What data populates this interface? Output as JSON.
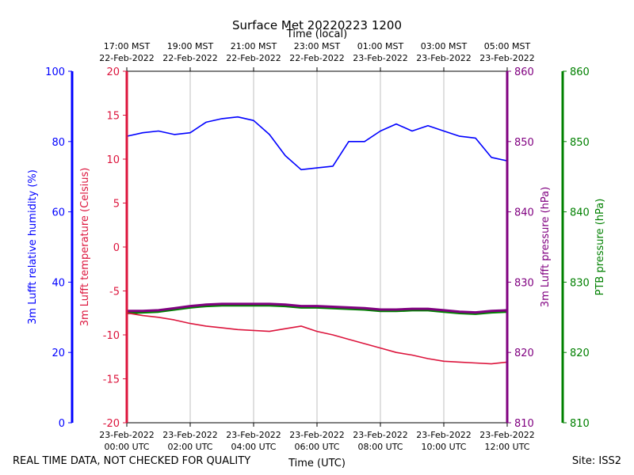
{
  "chart_data": {
    "type": "line",
    "title": "Surface Met 20220223 1200",
    "top_axis_label": "Time (local)",
    "bottom_axis_label": "Time (UTC)",
    "x_hours_range": [
      0,
      12
    ],
    "grid": "vertical",
    "bottom_ticks": [
      {
        "hour": 0,
        "date": "23-Feb-2022",
        "time": "00:00 UTC"
      },
      {
        "hour": 2,
        "date": "23-Feb-2022",
        "time": "02:00 UTC"
      },
      {
        "hour": 4,
        "date": "23-Feb-2022",
        "time": "04:00 UTC"
      },
      {
        "hour": 6,
        "date": "23-Feb-2022",
        "time": "06:00 UTC"
      },
      {
        "hour": 8,
        "date": "23-Feb-2022",
        "time": "08:00 UTC"
      },
      {
        "hour": 10,
        "date": "23-Feb-2022",
        "time": "10:00 UTC"
      },
      {
        "hour": 12,
        "date": "23-Feb-2022",
        "time": "12:00 UTC"
      }
    ],
    "top_ticks": [
      {
        "hour": 0,
        "time": "17:00 MST",
        "date": "22-Feb-2022"
      },
      {
        "hour": 2,
        "time": "19:00 MST",
        "date": "22-Feb-2022"
      },
      {
        "hour": 4,
        "time": "21:00 MST",
        "date": "22-Feb-2022"
      },
      {
        "hour": 6,
        "time": "23:00 MST",
        "date": "22-Feb-2022"
      },
      {
        "hour": 8,
        "time": "01:00 MST",
        "date": "23-Feb-2022"
      },
      {
        "hour": 10,
        "time": "03:00 MST",
        "date": "23-Feb-2022"
      },
      {
        "hour": 12,
        "time": "05:00 MST",
        "date": "23-Feb-2022"
      }
    ],
    "axes": {
      "rh": {
        "label": "3m Lufft relative humidity (%)",
        "color": "#0000ff",
        "ylim": [
          0,
          100
        ],
        "ticks": [
          0,
          20,
          40,
          60,
          80,
          100
        ]
      },
      "temp": {
        "label": "3m Lufft temperature (Celsius)",
        "color": "#dc143c",
        "ylim": [
          -20,
          20
        ],
        "ticks": [
          -20,
          -15,
          -10,
          -5,
          0,
          5,
          10,
          15,
          20
        ]
      },
      "lufft_p": {
        "label": "3m Lufft pressure (hPa)",
        "color": "#800080",
        "ylim": [
          810,
          860
        ],
        "ticks": [
          810,
          820,
          830,
          840,
          850,
          860
        ]
      },
      "ptb_p": {
        "label": "PTB pressure (hPa)",
        "color": "#008000",
        "ylim": [
          810,
          860
        ],
        "ticks": [
          810,
          820,
          830,
          840,
          850,
          860
        ]
      }
    },
    "series": [
      {
        "name": "3m Lufft relative humidity",
        "axis": "rh",
        "color": "#0000ff",
        "x": [
          0,
          0.5,
          1.0,
          1.5,
          2.0,
          2.5,
          3.0,
          3.5,
          4.0,
          4.5,
          5.0,
          5.5,
          6.0,
          6.5,
          7.0,
          7.5,
          8.0,
          8.5,
          9.0,
          9.5,
          10.0,
          10.5,
          11.0,
          11.5,
          12.0
        ],
        "values": [
          81.5,
          82.5,
          83,
          82,
          82.5,
          85.5,
          86.5,
          87,
          86,
          82,
          76,
          72,
          72.5,
          73,
          80,
          80,
          83,
          85,
          83,
          84.5,
          83,
          81.5,
          81,
          75.5,
          74.5
        ]
      },
      {
        "name": "3m Lufft temperature",
        "axis": "temp",
        "color": "#dc143c",
        "x": [
          0,
          0.5,
          1.0,
          1.5,
          2.0,
          2.5,
          3.0,
          3.5,
          4.0,
          4.5,
          5.0,
          5.5,
          6.0,
          6.5,
          7.0,
          7.5,
          8.0,
          8.5,
          9.0,
          9.5,
          10.0,
          10.5,
          11.0,
          11.5,
          12.0
        ],
        "values": [
          -7.5,
          -7.8,
          -8.0,
          -8.3,
          -8.7,
          -9.0,
          -9.2,
          -9.4,
          -9.5,
          -9.6,
          -9.3,
          -9.0,
          -9.6,
          -10.0,
          -10.5,
          -11.0,
          -11.5,
          -12.0,
          -12.3,
          -12.7,
          -13.0,
          -13.1,
          -13.2,
          -13.3,
          -13.1
        ]
      },
      {
        "name": "3m Lufft pressure",
        "axis": "lufft_p",
        "color": "#800080",
        "x": [
          0,
          0.5,
          1.0,
          1.5,
          2.0,
          2.5,
          3.0,
          3.5,
          4.0,
          4.5,
          5.0,
          5.5,
          6.0,
          6.5,
          7.0,
          7.5,
          8.0,
          8.5,
          9.0,
          9.5,
          10.0,
          10.5,
          11.0,
          11.5,
          12.0
        ],
        "values": [
          825.9,
          825.9,
          826.0,
          826.3,
          826.6,
          826.8,
          826.9,
          826.9,
          826.9,
          826.9,
          826.8,
          826.6,
          826.6,
          826.5,
          826.4,
          826.3,
          826.1,
          826.1,
          826.2,
          826.2,
          826.0,
          825.8,
          825.7,
          825.9,
          826.0
        ]
      },
      {
        "name": "PTB pressure",
        "axis": "ptb_p",
        "color": "#008000",
        "x": [
          0,
          0.5,
          1.0,
          1.5,
          2.0,
          2.5,
          3.0,
          3.5,
          4.0,
          4.5,
          5.0,
          5.5,
          6.0,
          6.5,
          7.0,
          7.5,
          8.0,
          8.5,
          9.0,
          9.5,
          10.0,
          10.5,
          11.0,
          11.5,
          12.0
        ],
        "values": [
          825.6,
          825.7,
          825.8,
          826.1,
          826.4,
          826.6,
          826.7,
          826.7,
          826.7,
          826.7,
          826.6,
          826.4,
          826.4,
          826.3,
          826.2,
          826.1,
          825.9,
          825.9,
          826.0,
          826.0,
          825.8,
          825.6,
          825.5,
          825.7,
          825.8
        ]
      }
    ]
  },
  "footer": {
    "disclaimer": "REAL TIME DATA, NOT CHECKED FOR QUALITY",
    "site": "Site: ISS2"
  }
}
